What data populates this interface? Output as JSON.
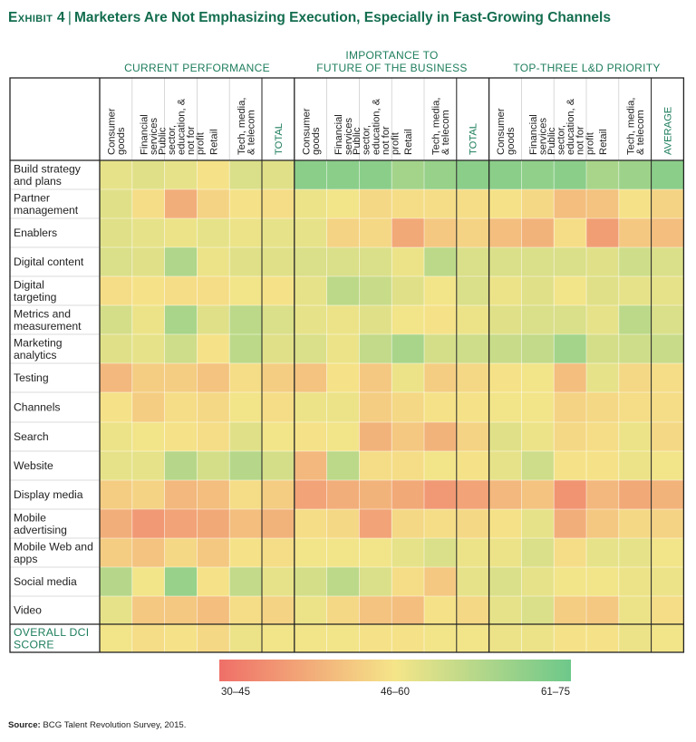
{
  "title": {
    "exhibit": "Exhibit 4",
    "text": "Marketers Are Not Emphasizing Execution, Especially in Fast-Growing Channels"
  },
  "groups": [
    "CURRENT PERFORMANCE",
    "IMPORTANCE TO\nFUTURE OF THE BUSINESS",
    "TOP-THREE L&D  PRIORITY"
  ],
  "legend": {
    "low": "30–45",
    "mid": "46–60",
    "high": "61–75",
    "colors": [
      "#ef6f68",
      "#f5e589",
      "#6dc88a"
    ]
  },
  "source": {
    "label": "Source:",
    "text": "BCG Talent Revolution Survey, 2015."
  },
  "chart_data": {
    "type": "heatmap",
    "title": "Marketers Are Not Emphasizing Execution, Especially in Fast-Growing Channels",
    "value_range": [
      30,
      75
    ],
    "columns": [
      "Consumer goods",
      "Financial services",
      "Public sector, education, & not for profit",
      "Retail",
      "Tech, media, & telecom",
      "TOTAL",
      "Consumer goods",
      "Financial services",
      "Public sector, education, & not for profit",
      "Retail",
      "Tech, media, & telecom",
      "TOTAL",
      "Consumer goods",
      "Financial services",
      "Public sector, education, & not for profit",
      "Retail",
      "Tech, media, & telecom",
      "AVERAGE"
    ],
    "column_groups": [
      "CURRENT PERFORMANCE",
      "IMPORTANCE TO FUTURE OF THE BUSINESS",
      "TOP-THREE L&D PRIORITY"
    ],
    "rows": [
      "Build strategy and plans",
      "Partner management",
      "Enablers",
      "Digital content",
      "Digital targeting",
      "Metrics and measurement",
      "Marketing analytics",
      "Testing",
      "Channels",
      "Search",
      "Website",
      "Display media",
      "Mobile advertising",
      "Mobile Web and apps",
      "Social media",
      "Video",
      "OVERALL DCI SCORE"
    ],
    "values": [
      [
        55,
        56,
        55,
        52,
        57,
        56,
        70,
        70,
        70,
        66,
        68,
        70,
        70,
        69,
        70,
        65,
        67,
        70
      ],
      [
        56,
        51,
        42,
        49,
        52,
        51,
        54,
        53,
        50,
        51,
        51,
        51,
        52,
        50,
        45,
        46,
        52,
        49
      ],
      [
        56,
        55,
        54,
        55,
        54,
        55,
        55,
        49,
        50,
        41,
        47,
        49,
        45,
        43,
        51,
        39,
        47,
        45
      ],
      [
        57,
        56,
        64,
        54,
        56,
        56,
        57,
        57,
        57,
        54,
        62,
        57,
        57,
        57,
        57,
        56,
        59,
        57
      ],
      [
        51,
        52,
        51,
        51,
        53,
        52,
        55,
        62,
        60,
        56,
        53,
        57,
        54,
        56,
        53,
        56,
        55,
        55
      ],
      [
        58,
        54,
        65,
        56,
        62,
        57,
        55,
        54,
        56,
        53,
        52,
        54,
        56,
        57,
        57,
        55,
        62,
        57
      ],
      [
        56,
        55,
        59,
        52,
        62,
        56,
        57,
        54,
        61,
        65,
        58,
        59,
        60,
        61,
        66,
        58,
        59,
        60
      ],
      [
        44,
        48,
        48,
        46,
        51,
        48,
        46,
        52,
        47,
        54,
        48,
        50,
        52,
        53,
        45,
        55,
        50,
        51
      ],
      [
        52,
        48,
        51,
        50,
        53,
        51,
        54,
        54,
        48,
        50,
        52,
        52,
        53,
        53,
        49,
        50,
        51,
        51
      ],
      [
        54,
        53,
        52,
        51,
        56,
        53,
        52,
        53,
        43,
        47,
        43,
        49,
        56,
        54,
        50,
        51,
        54,
        50
      ],
      [
        55,
        55,
        63,
        58,
        63,
        58,
        44,
        62,
        51,
        51,
        53,
        52,
        55,
        59,
        52,
        52,
        54,
        53
      ],
      [
        48,
        49,
        44,
        45,
        51,
        48,
        40,
        42,
        43,
        41,
        38,
        40,
        44,
        46,
        37,
        44,
        41,
        43
      ],
      [
        42,
        38,
        40,
        41,
        45,
        43,
        51,
        50,
        40,
        50,
        51,
        50,
        52,
        55,
        42,
        47,
        50,
        49
      ],
      [
        48,
        46,
        50,
        47,
        52,
        51,
        53,
        53,
        53,
        55,
        57,
        54,
        54,
        57,
        51,
        55,
        55,
        53
      ],
      [
        63,
        53,
        68,
        52,
        61,
        55,
        58,
        62,
        57,
        51,
        47,
        55,
        57,
        55,
        53,
        53,
        54,
        54
      ],
      [
        55,
        47,
        47,
        45,
        51,
        49,
        54,
        50,
        46,
        45,
        52,
        50,
        55,
        57,
        48,
        47,
        54,
        51
      ],
      [
        53,
        51,
        52,
        50,
        54,
        53,
        53,
        53,
        52,
        52,
        53,
        53,
        54,
        54,
        52,
        52,
        54,
        53
      ]
    ]
  }
}
